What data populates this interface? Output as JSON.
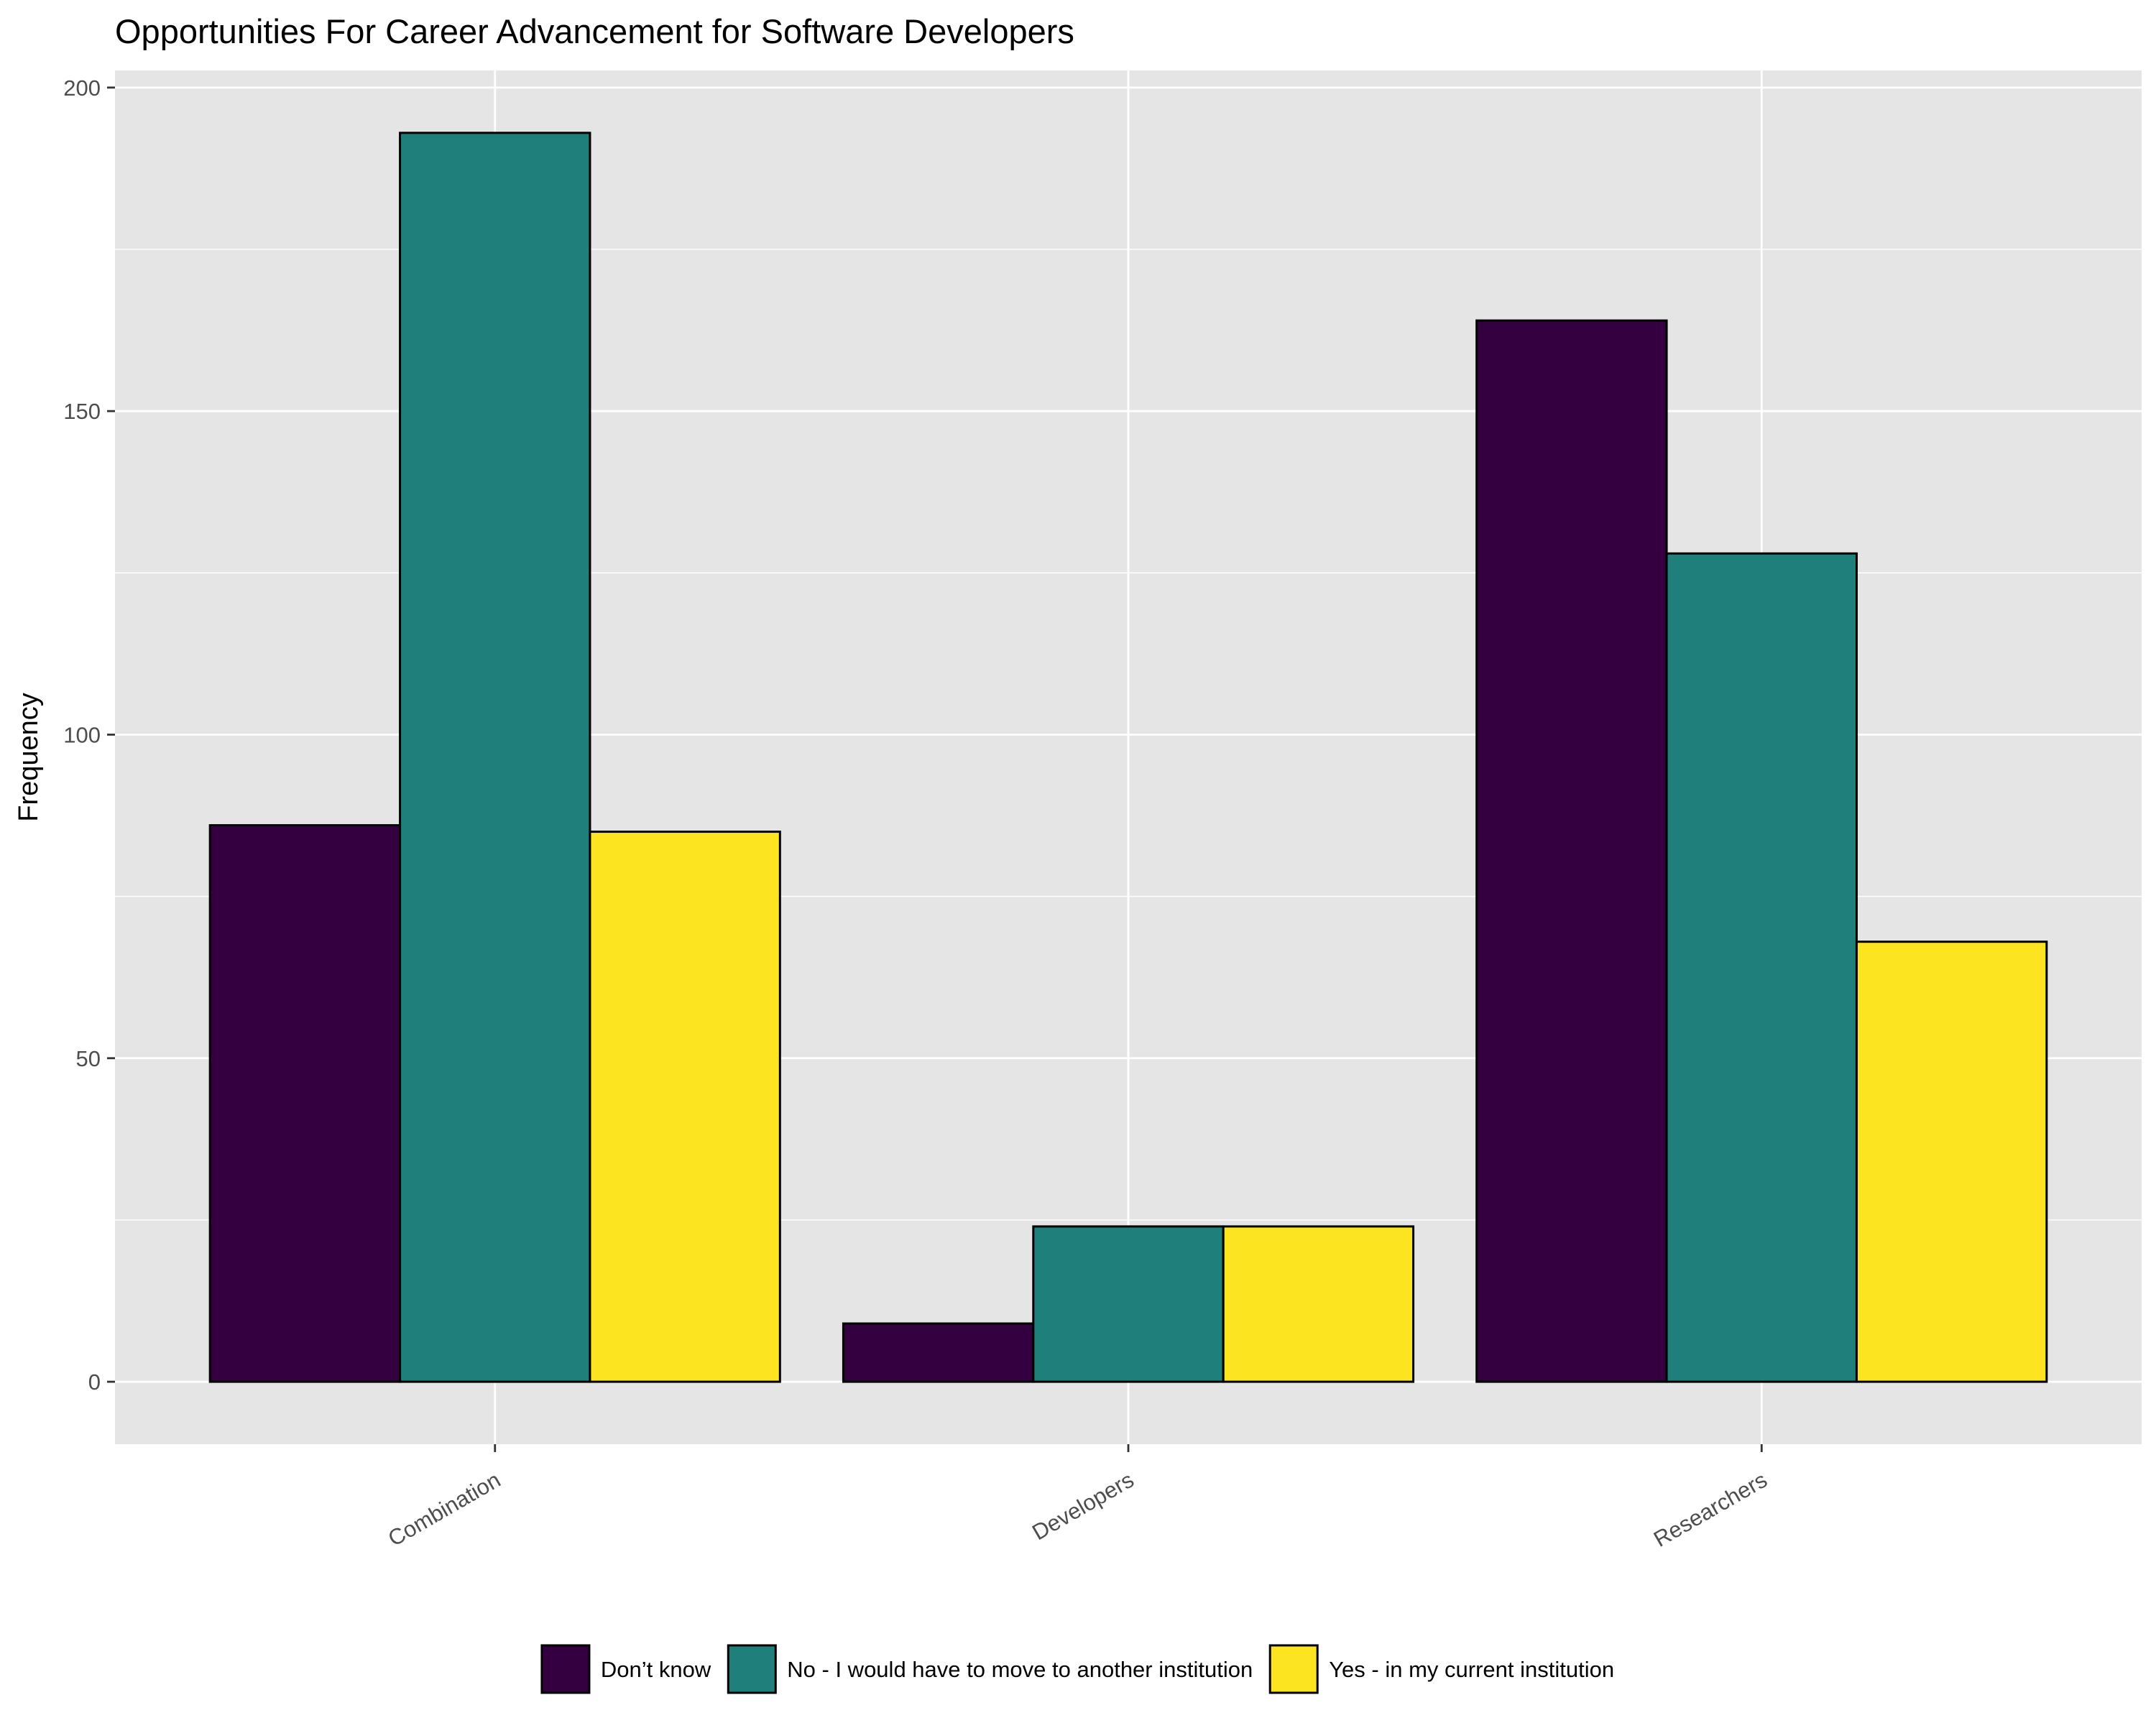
{
  "chart_data": {
    "type": "bar",
    "title": "Opportunities For Career Advancement for Software Developers",
    "xlabel": "",
    "ylabel": "Frequency",
    "categories": [
      "Combination",
      "Developers",
      "Researchers"
    ],
    "series": [
      {
        "name": "Don’t know",
        "color": "#35003F",
        "values": [
          86,
          9,
          164
        ]
      },
      {
        "name": "No - I would have to move to another institution",
        "color": "#1F7F7A",
        "values": [
          193,
          24,
          128
        ]
      },
      {
        "name": "Yes - in my current institution",
        "color": "#FDE420",
        "values": [
          85,
          24,
          68
        ]
      }
    ],
    "ylim": [
      -9.65,
      202.65
    ],
    "yticks": [
      0,
      50,
      100,
      150,
      200
    ],
    "ytick_labels": [
      "0",
      "50",
      "100",
      "150",
      "200"
    ],
    "grid": true,
    "panel_background": "#E5E5E5",
    "legend_position": "bottom"
  }
}
